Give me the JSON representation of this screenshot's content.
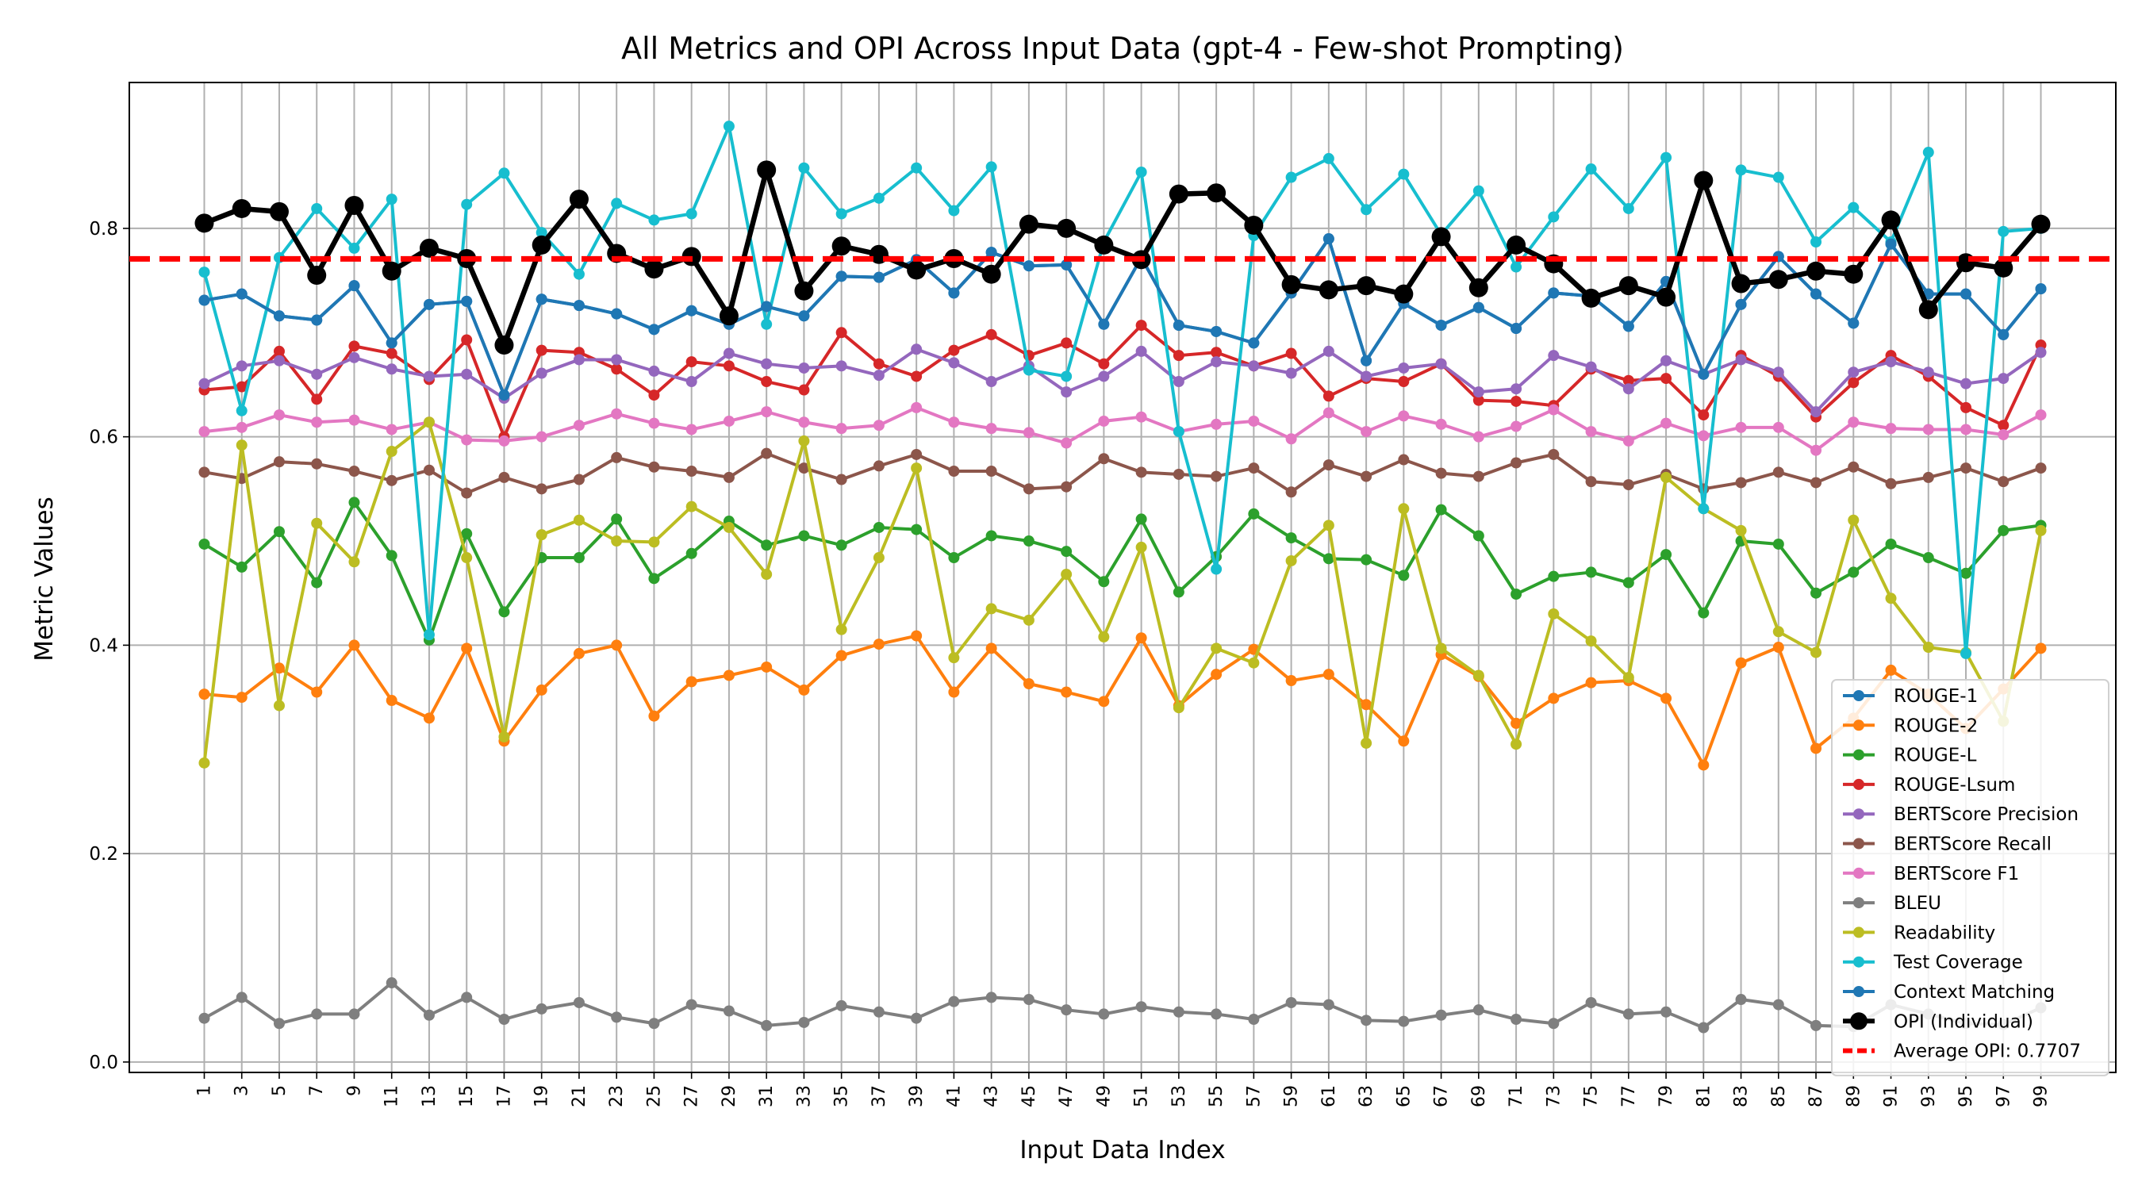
{
  "chart_data": {
    "type": "line",
    "title": "All Metrics and OPI Across Input Data (gpt-4 - Few-shot Prompting)",
    "xlabel": "Input Data Index",
    "ylabel": "Metric Values",
    "ylim": [
      -0.01,
      0.94
    ],
    "yticks": [
      0.0,
      0.2,
      0.4,
      0.6,
      0.8
    ],
    "ytick_labels": [
      "0.0",
      "0.2",
      "0.4",
      "0.6",
      "0.8"
    ],
    "x": [
      1,
      3,
      5,
      7,
      9,
      11,
      13,
      15,
      17,
      19,
      21,
      23,
      25,
      27,
      29,
      31,
      33,
      35,
      37,
      39,
      41,
      43,
      45,
      47,
      49,
      51,
      53,
      55,
      57,
      59,
      61,
      63,
      65,
      67,
      69,
      71,
      73,
      75,
      77,
      79,
      81,
      83,
      85,
      87,
      89,
      91,
      93,
      95,
      97,
      99
    ],
    "xtick_labels": [
      "1",
      "3",
      "5",
      "7",
      "9",
      "11",
      "13",
      "15",
      "17",
      "19",
      "21",
      "23",
      "25",
      "27",
      "29",
      "31",
      "33",
      "35",
      "37",
      "39",
      "41",
      "43",
      "45",
      "47",
      "49",
      "51",
      "53",
      "55",
      "57",
      "59",
      "61",
      "63",
      "65",
      "67",
      "69",
      "71",
      "73",
      "75",
      "77",
      "79",
      "81",
      "83",
      "85",
      "87",
      "89",
      "91",
      "93",
      "95",
      "97",
      "99"
    ],
    "grid": true,
    "legend_position": "lower-right",
    "average_line": {
      "label": "Average OPI: 0.7707",
      "value": 0.7707,
      "color": "#ff0000"
    },
    "series": [
      {
        "name": "ROUGE-1",
        "color": "#1f77b4",
        "values": [
          0.731,
          0.737,
          0.716,
          0.712,
          0.745,
          0.69,
          0.727,
          0.73,
          0.64,
          0.732,
          0.726,
          0.718,
          0.703,
          0.721,
          0.708,
          0.725,
          0.716,
          0.754,
          0.753,
          0.77,
          0.738,
          0.777,
          0.764,
          0.765,
          0.708,
          0.772,
          0.707,
          0.701,
          0.69,
          0.738,
          0.79,
          0.673,
          0.728,
          0.707,
          0.724,
          0.704,
          0.738,
          0.735,
          0.706,
          0.749,
          0.66,
          0.727,
          0.773,
          0.737,
          0.709,
          0.785,
          0.737,
          0.737,
          0.698,
          0.742
        ]
      },
      {
        "name": "ROUGE-2",
        "color": "#ff7f0e",
        "values": [
          0.353,
          0.35,
          0.378,
          0.355,
          0.4,
          0.347,
          0.33,
          0.397,
          0.308,
          0.357,
          0.392,
          0.4,
          0.332,
          0.365,
          0.371,
          0.379,
          0.357,
          0.39,
          0.401,
          0.409,
          0.355,
          0.397,
          0.363,
          0.355,
          0.346,
          0.407,
          0.342,
          0.372,
          0.396,
          0.366,
          0.372,
          0.343,
          0.308,
          0.391,
          0.37,
          0.325,
          0.349,
          0.364,
          0.366,
          0.349,
          0.285,
          0.383,
          0.398,
          0.301,
          0.33,
          0.376,
          0.353,
          0.32,
          0.358,
          0.397
        ]
      },
      {
        "name": "ROUGE-L",
        "color": "#2ca02c",
        "values": [
          0.497,
          0.475,
          0.509,
          0.46,
          0.537,
          0.486,
          0.405,
          0.507,
          0.432,
          0.484,
          0.484,
          0.521,
          0.464,
          0.488,
          0.519,
          0.496,
          0.505,
          0.496,
          0.513,
          0.511,
          0.484,
          0.505,
          0.5,
          0.49,
          0.461,
          0.521,
          0.451,
          0.485,
          0.526,
          0.503,
          0.483,
          0.482,
          0.467,
          0.53,
          0.505,
          0.449,
          0.466,
          0.47,
          0.46,
          0.487,
          0.431,
          0.5,
          0.497,
          0.45,
          0.47,
          0.497,
          0.484,
          0.469,
          0.51,
          0.515
        ]
      },
      {
        "name": "ROUGE-Lsum",
        "color": "#d62728",
        "values": [
          0.645,
          0.648,
          0.682,
          0.636,
          0.687,
          0.68,
          0.655,
          0.693,
          0.6,
          0.683,
          0.681,
          0.665,
          0.64,
          0.672,
          0.668,
          0.653,
          0.645,
          0.7,
          0.67,
          0.658,
          0.683,
          0.698,
          0.678,
          0.69,
          0.67,
          0.707,
          0.678,
          0.681,
          0.668,
          0.68,
          0.639,
          0.656,
          0.653,
          0.67,
          0.635,
          0.634,
          0.63,
          0.665,
          0.654,
          0.656,
          0.621,
          0.678,
          0.658,
          0.619,
          0.652,
          0.678,
          0.658,
          0.628,
          0.611,
          0.688
        ]
      },
      {
        "name": "BERTScore Precision",
        "color": "#9467bd",
        "values": [
          0.651,
          0.668,
          0.673,
          0.66,
          0.676,
          0.665,
          0.658,
          0.66,
          0.637,
          0.661,
          0.674,
          0.674,
          0.663,
          0.653,
          0.68,
          0.67,
          0.666,
          0.668,
          0.659,
          0.684,
          0.671,
          0.653,
          0.668,
          0.643,
          0.658,
          0.682,
          0.653,
          0.672,
          0.668,
          0.661,
          0.682,
          0.658,
          0.666,
          0.67,
          0.643,
          0.646,
          0.678,
          0.667,
          0.646,
          0.673,
          0.66,
          0.674,
          0.662,
          0.624,
          0.662,
          0.672,
          0.662,
          0.651,
          0.656,
          0.681
        ]
      },
      {
        "name": "BERTScore Recall",
        "color": "#8c564b",
        "values": [
          0.566,
          0.56,
          0.576,
          0.574,
          0.567,
          0.558,
          0.568,
          0.546,
          0.561,
          0.55,
          0.559,
          0.58,
          0.571,
          0.567,
          0.561,
          0.584,
          0.57,
          0.559,
          0.572,
          0.583,
          0.567,
          0.567,
          0.55,
          0.552,
          0.579,
          0.566,
          0.564,
          0.562,
          0.57,
          0.547,
          0.573,
          0.562,
          0.578,
          0.565,
          0.562,
          0.575,
          0.583,
          0.557,
          0.554,
          0.564,
          0.55,
          0.556,
          0.566,
          0.556,
          0.571,
          0.555,
          0.561,
          0.57,
          0.557,
          0.57
        ]
      },
      {
        "name": "BERTScore F1",
        "color": "#e377c2",
        "values": [
          0.605,
          0.609,
          0.621,
          0.614,
          0.616,
          0.607,
          0.614,
          0.597,
          0.596,
          0.6,
          0.611,
          0.622,
          0.613,
          0.607,
          0.615,
          0.624,
          0.614,
          0.608,
          0.611,
          0.628,
          0.614,
          0.608,
          0.604,
          0.594,
          0.615,
          0.619,
          0.605,
          0.612,
          0.615,
          0.598,
          0.623,
          0.605,
          0.62,
          0.612,
          0.6,
          0.61,
          0.626,
          0.605,
          0.596,
          0.613,
          0.601,
          0.609,
          0.609,
          0.587,
          0.614,
          0.608,
          0.607,
          0.607,
          0.602,
          0.621
        ]
      },
      {
        "name": "BLEU",
        "color": "#7f7f7f",
        "values": [
          0.042,
          0.062,
          0.037,
          0.046,
          0.046,
          0.076,
          0.045,
          0.062,
          0.041,
          0.051,
          0.057,
          0.043,
          0.037,
          0.055,
          0.049,
          0.035,
          0.038,
          0.054,
          0.048,
          0.042,
          0.058,
          0.062,
          0.06,
          0.05,
          0.046,
          0.053,
          0.048,
          0.046,
          0.041,
          0.057,
          0.055,
          0.04,
          0.039,
          0.045,
          0.05,
          0.041,
          0.037,
          0.057,
          0.046,
          0.048,
          0.033,
          0.06,
          0.055,
          0.035,
          0.034,
          0.055,
          0.046,
          0.037,
          0.036,
          0.052
        ]
      },
      {
        "name": "Readability",
        "color": "#bcbd22",
        "values": [
          0.287,
          0.592,
          0.342,
          0.517,
          0.48,
          0.586,
          0.614,
          0.484,
          0.312,
          0.506,
          0.52,
          0.5,
          0.499,
          0.533,
          0.513,
          0.468,
          0.596,
          0.415,
          0.484,
          0.57,
          0.388,
          0.435,
          0.424,
          0.468,
          0.408,
          0.494,
          0.34,
          0.397,
          0.383,
          0.481,
          0.515,
          0.306,
          0.531,
          0.397,
          0.371,
          0.305,
          0.43,
          0.404,
          0.369,
          0.561,
          0.531,
          0.51,
          0.413,
          0.393,
          0.52,
          0.445,
          0.398,
          0.393,
          0.327,
          0.51
        ]
      },
      {
        "name": "Test Coverage",
        "color": "#17becf",
        "values": [
          0.758,
          0.625,
          0.772,
          0.819,
          0.781,
          0.828,
          0.41,
          0.823,
          0.853,
          0.796,
          0.756,
          0.824,
          0.808,
          0.814,
          0.898,
          0.708,
          0.858,
          0.814,
          0.829,
          0.858,
          0.817,
          0.859,
          0.664,
          0.658,
          0.787,
          0.854,
          0.605,
          0.473,
          0.793,
          0.849,
          0.867,
          0.818,
          0.852,
          0.794,
          0.836,
          0.763,
          0.811,
          0.857,
          0.819,
          0.868,
          0.531,
          0.856,
          0.849,
          0.787,
          0.82,
          0.787,
          0.873,
          0.392,
          0.797,
          0.8
        ]
      },
      {
        "name": "Context Matching",
        "color": "#1f77b4",
        "values": [
          0.731,
          0.737,
          0.716,
          0.712,
          0.745,
          0.69,
          0.727,
          0.73,
          0.64,
          0.732,
          0.726,
          0.718,
          0.703,
          0.721,
          0.708,
          0.725,
          0.716,
          0.754,
          0.753,
          0.77,
          0.738,
          0.777,
          0.764,
          0.765,
          0.708,
          0.772,
          0.707,
          0.701,
          0.69,
          0.738,
          0.79,
          0.673,
          0.728,
          0.707,
          0.724,
          0.704,
          0.738,
          0.735,
          0.706,
          0.749,
          0.66,
          0.727,
          0.773,
          0.737,
          0.709,
          0.785,
          0.737,
          0.737,
          0.698,
          0.742
        ]
      },
      {
        "name": "OPI (Individual)",
        "color": "#000000",
        "emphasis": true,
        "values": [
          0.805,
          0.819,
          0.816,
          0.755,
          0.822,
          0.759,
          0.781,
          0.771,
          0.688,
          0.784,
          0.828,
          0.776,
          0.761,
          0.773,
          0.716,
          0.856,
          0.74,
          0.783,
          0.775,
          0.76,
          0.771,
          0.756,
          0.804,
          0.8,
          0.784,
          0.77,
          0.833,
          0.834,
          0.803,
          0.746,
          0.741,
          0.745,
          0.737,
          0.792,
          0.743,
          0.784,
          0.766,
          0.733,
          0.745,
          0.734,
          0.846,
          0.747,
          0.751,
          0.759,
          0.756,
          0.808,
          0.722,
          0.767,
          0.762,
          0.804
        ]
      }
    ]
  }
}
